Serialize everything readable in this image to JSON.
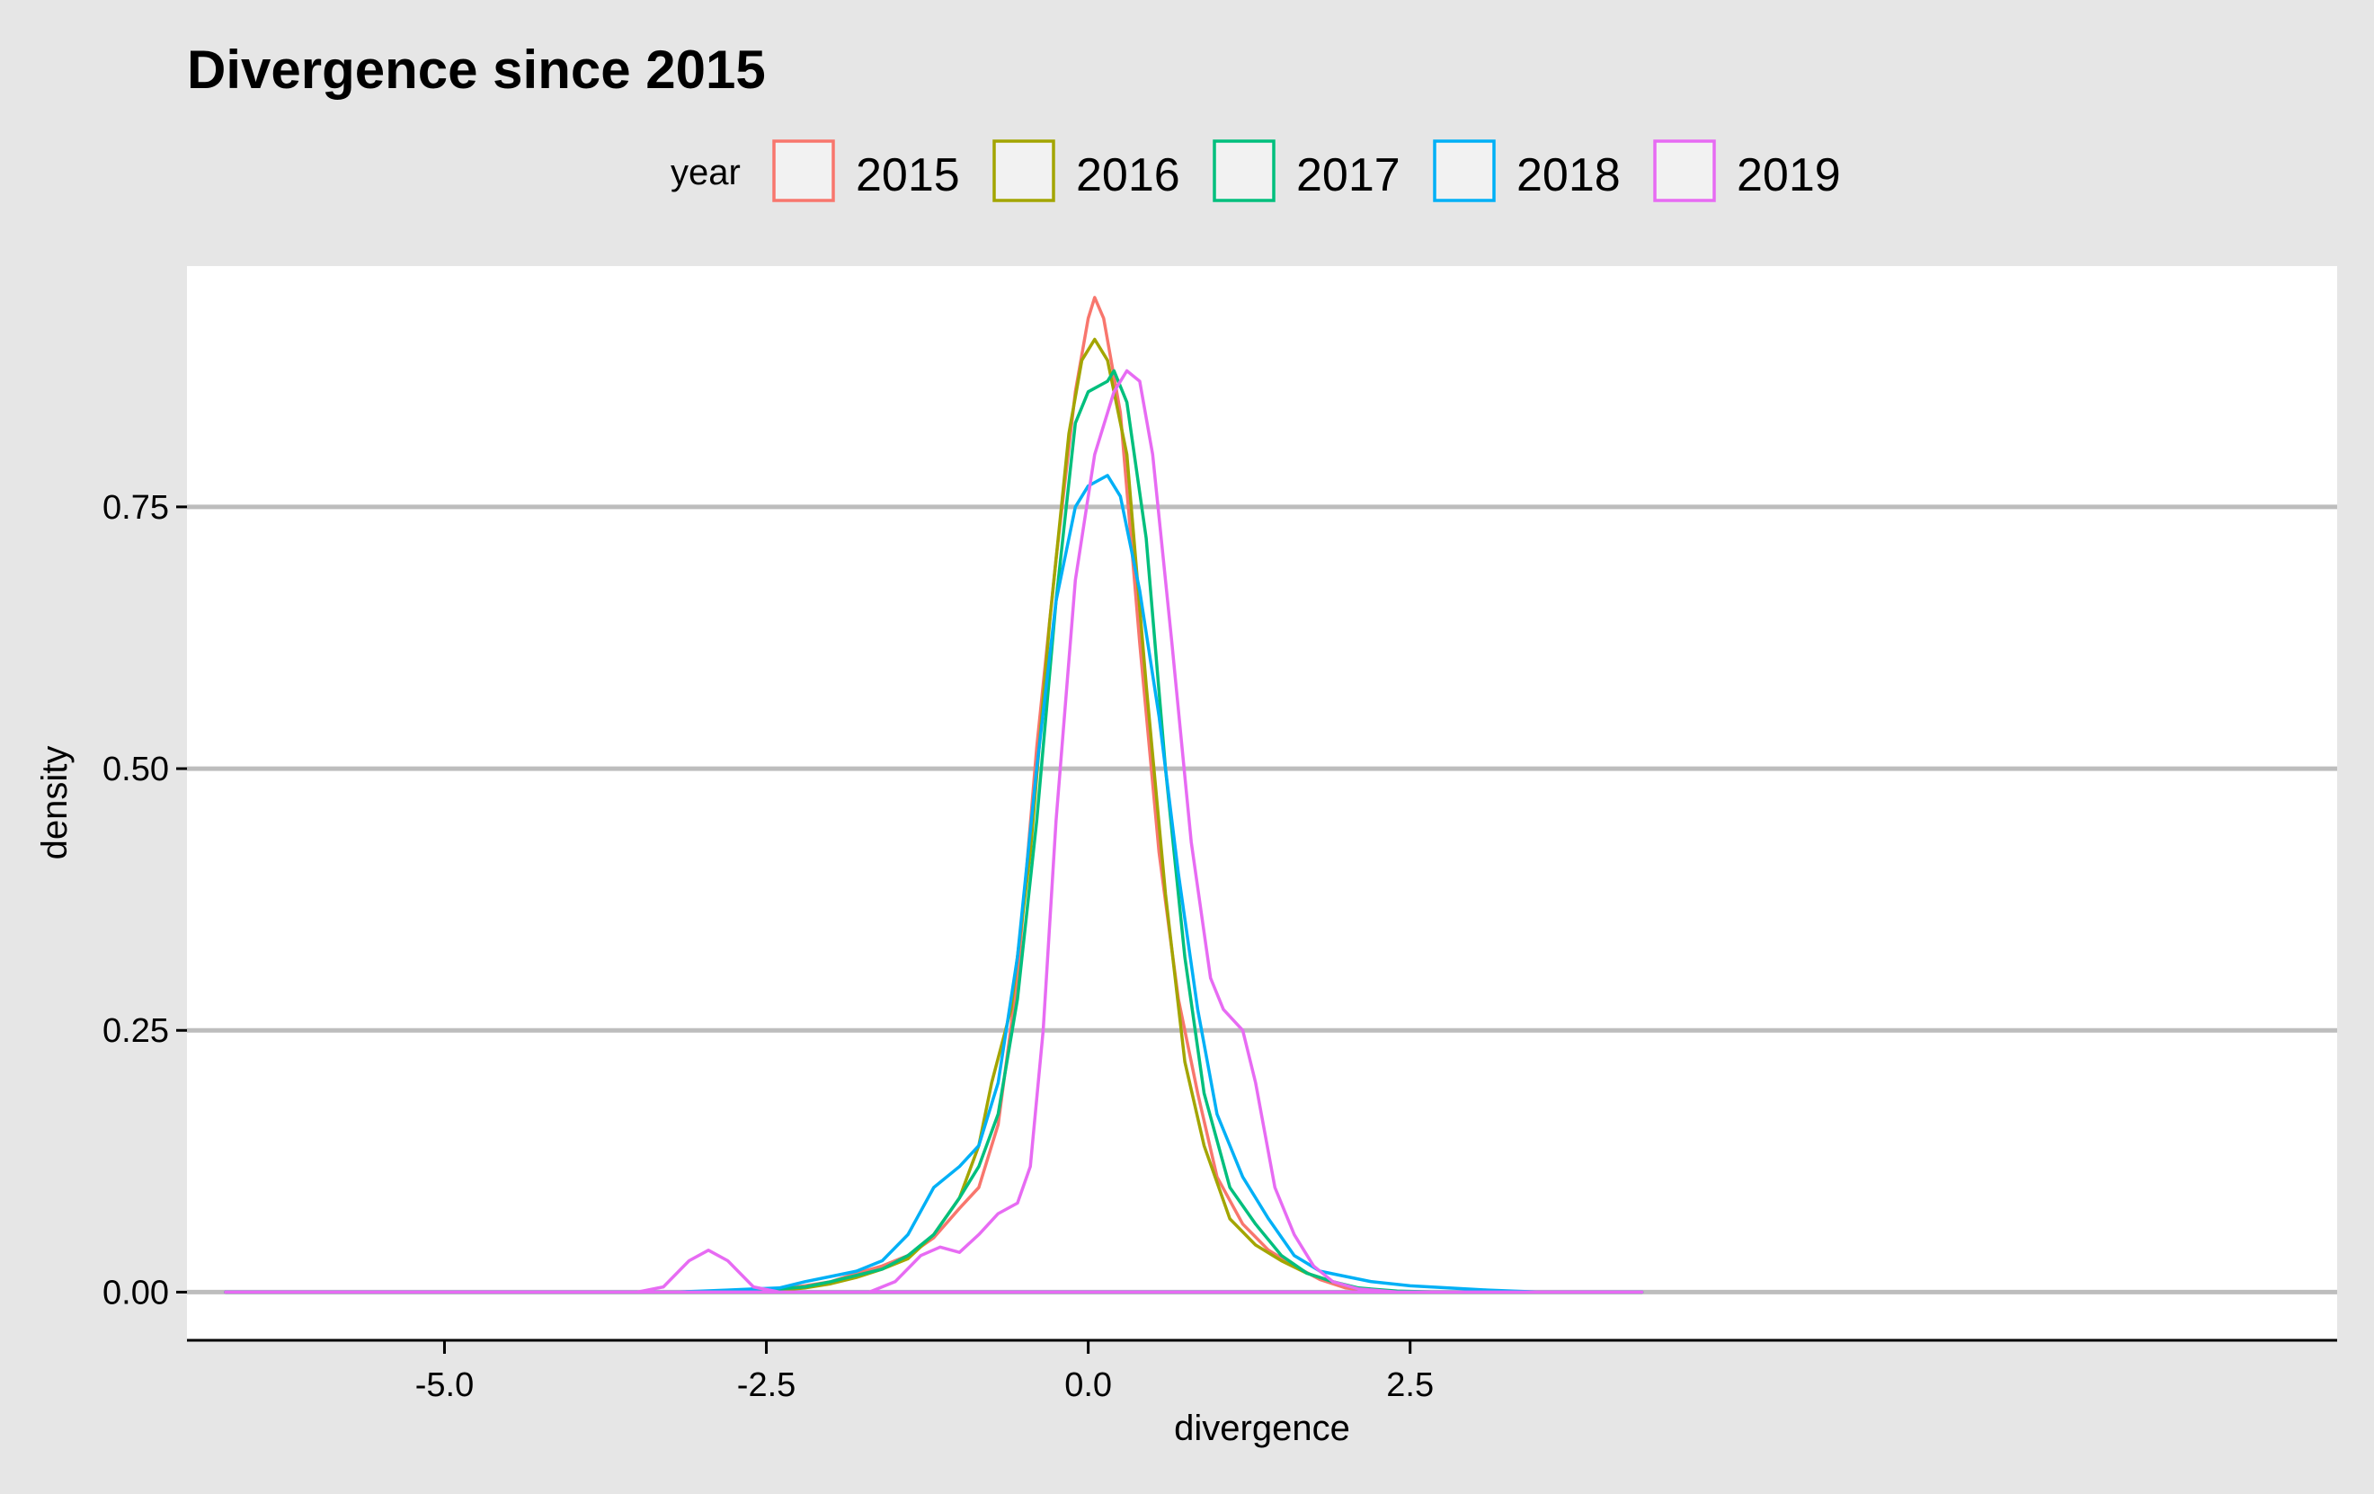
{
  "chart_data": {
    "type": "line",
    "subtype": "density",
    "title": "Divergence since 2015",
    "xlabel": "divergence",
    "ylabel": "density",
    "xlim": [
      -7.0,
      9.7
    ],
    "ylim": [
      -0.046,
      0.98
    ],
    "x_ticks": [
      -5.0,
      -2.5,
      0.0,
      2.5
    ],
    "x_tick_labels": [
      "-5.0",
      "-2.5",
      "0.0",
      "2.5"
    ],
    "y_ticks": [
      0.0,
      0.25,
      0.5,
      0.75
    ],
    "y_tick_labels": [
      "0.00",
      "0.25",
      "0.50",
      "0.75"
    ],
    "grid": "horizontal major",
    "legend": {
      "title": "year",
      "placement": "top"
    },
    "series": [
      {
        "name": "2015",
        "color": "#F8766D",
        "points": [
          [
            -6.7,
            0
          ],
          [
            -3.2,
            0
          ],
          [
            -2.8,
            0.001
          ],
          [
            -2.4,
            0.003
          ],
          [
            -2.2,
            0.006
          ],
          [
            -2.0,
            0.01
          ],
          [
            -1.8,
            0.018
          ],
          [
            -1.6,
            0.025
          ],
          [
            -1.4,
            0.035
          ],
          [
            -1.2,
            0.052
          ],
          [
            -1.0,
            0.08
          ],
          [
            -0.85,
            0.1
          ],
          [
            -0.7,
            0.16
          ],
          [
            -0.55,
            0.3
          ],
          [
            -0.4,
            0.52
          ],
          [
            -0.25,
            0.7
          ],
          [
            -0.1,
            0.86
          ],
          [
            0.0,
            0.93
          ],
          [
            0.05,
            0.95
          ],
          [
            0.12,
            0.93
          ],
          [
            0.25,
            0.84
          ],
          [
            0.4,
            0.62
          ],
          [
            0.55,
            0.42
          ],
          [
            0.7,
            0.28
          ],
          [
            0.85,
            0.19
          ],
          [
            1.0,
            0.11
          ],
          [
            1.2,
            0.065
          ],
          [
            1.4,
            0.04
          ],
          [
            1.6,
            0.025
          ],
          [
            1.8,
            0.012
          ],
          [
            2.0,
            0.004
          ],
          [
            2.2,
            0.001
          ],
          [
            2.5,
            0
          ],
          [
            3.5,
            0
          ],
          [
            4.3,
            0
          ]
        ]
      },
      {
        "name": "2016",
        "color": "#A3A500",
        "points": [
          [
            -6.7,
            0
          ],
          [
            -3.2,
            0
          ],
          [
            -2.8,
            0.001
          ],
          [
            -2.4,
            0.002
          ],
          [
            -2.2,
            0.004
          ],
          [
            -2.0,
            0.008
          ],
          [
            -1.8,
            0.014
          ],
          [
            -1.6,
            0.022
          ],
          [
            -1.4,
            0.032
          ],
          [
            -1.2,
            0.055
          ],
          [
            -1.0,
            0.09
          ],
          [
            -0.85,
            0.14
          ],
          [
            -0.75,
            0.2
          ],
          [
            -0.6,
            0.27
          ],
          [
            -0.45,
            0.42
          ],
          [
            -0.3,
            0.64
          ],
          [
            -0.15,
            0.82
          ],
          [
            -0.05,
            0.89
          ],
          [
            0.05,
            0.91
          ],
          [
            0.15,
            0.89
          ],
          [
            0.3,
            0.8
          ],
          [
            0.45,
            0.58
          ],
          [
            0.6,
            0.38
          ],
          [
            0.75,
            0.22
          ],
          [
            0.9,
            0.14
          ],
          [
            1.1,
            0.07
          ],
          [
            1.3,
            0.045
          ],
          [
            1.5,
            0.03
          ],
          [
            1.7,
            0.018
          ],
          [
            1.9,
            0.01
          ],
          [
            2.1,
            0.003
          ],
          [
            2.4,
            0
          ],
          [
            3.5,
            0
          ],
          [
            4.3,
            0
          ]
        ]
      },
      {
        "name": "2017",
        "color": "#00BF7D",
        "points": [
          [
            -6.7,
            0
          ],
          [
            -3.2,
            0
          ],
          [
            -2.8,
            0.001
          ],
          [
            -2.4,
            0.003
          ],
          [
            -2.2,
            0.005
          ],
          [
            -2.0,
            0.01
          ],
          [
            -1.8,
            0.016
          ],
          [
            -1.6,
            0.022
          ],
          [
            -1.4,
            0.035
          ],
          [
            -1.2,
            0.055
          ],
          [
            -1.0,
            0.09
          ],
          [
            -0.85,
            0.12
          ],
          [
            -0.7,
            0.17
          ],
          [
            -0.55,
            0.28
          ],
          [
            -0.4,
            0.45
          ],
          [
            -0.25,
            0.66
          ],
          [
            -0.1,
            0.83
          ],
          [
            0.0,
            0.86
          ],
          [
            0.15,
            0.87
          ],
          [
            0.2,
            0.88
          ],
          [
            0.3,
            0.85
          ],
          [
            0.45,
            0.72
          ],
          [
            0.6,
            0.5
          ],
          [
            0.75,
            0.32
          ],
          [
            0.9,
            0.19
          ],
          [
            1.1,
            0.1
          ],
          [
            1.3,
            0.065
          ],
          [
            1.5,
            0.035
          ],
          [
            1.7,
            0.018
          ],
          [
            1.9,
            0.01
          ],
          [
            2.1,
            0.004
          ],
          [
            2.4,
            0.001
          ],
          [
            2.7,
            0
          ],
          [
            3.5,
            0
          ],
          [
            4.3,
            0
          ]
        ]
      },
      {
        "name": "2018",
        "color": "#00B0F6",
        "points": [
          [
            -6.7,
            0
          ],
          [
            -3.2,
            0
          ],
          [
            -2.8,
            0.002
          ],
          [
            -2.6,
            0.003
          ],
          [
            -2.4,
            0.004
          ],
          [
            -2.2,
            0.01
          ],
          [
            -2.0,
            0.015
          ],
          [
            -1.8,
            0.02
          ],
          [
            -1.6,
            0.03
          ],
          [
            -1.4,
            0.055
          ],
          [
            -1.2,
            0.1
          ],
          [
            -1.0,
            0.12
          ],
          [
            -0.85,
            0.14
          ],
          [
            -0.7,
            0.2
          ],
          [
            -0.55,
            0.32
          ],
          [
            -0.4,
            0.5
          ],
          [
            -0.25,
            0.66
          ],
          [
            -0.1,
            0.75
          ],
          [
            0.0,
            0.77
          ],
          [
            0.15,
            0.78
          ],
          [
            0.25,
            0.76
          ],
          [
            0.4,
            0.67
          ],
          [
            0.55,
            0.55
          ],
          [
            0.7,
            0.4
          ],
          [
            0.85,
            0.27
          ],
          [
            1.0,
            0.17
          ],
          [
            1.2,
            0.11
          ],
          [
            1.4,
            0.07
          ],
          [
            1.6,
            0.035
          ],
          [
            1.8,
            0.02
          ],
          [
            2.0,
            0.015
          ],
          [
            2.2,
            0.01
          ],
          [
            2.5,
            0.006
          ],
          [
            2.8,
            0.004
          ],
          [
            3.1,
            0.002
          ],
          [
            3.5,
            0
          ],
          [
            4.3,
            0
          ]
        ]
      },
      {
        "name": "2019",
        "color": "#E76BF3",
        "points": [
          [
            -6.7,
            0
          ],
          [
            -3.5,
            0
          ],
          [
            -3.3,
            0.005
          ],
          [
            -3.1,
            0.03
          ],
          [
            -2.95,
            0.04
          ],
          [
            -2.8,
            0.03
          ],
          [
            -2.6,
            0.005
          ],
          [
            -2.4,
            0
          ],
          [
            -1.7,
            0
          ],
          [
            -1.5,
            0.01
          ],
          [
            -1.3,
            0.035
          ],
          [
            -1.15,
            0.043
          ],
          [
            -1.0,
            0.038
          ],
          [
            -0.85,
            0.055
          ],
          [
            -0.7,
            0.075
          ],
          [
            -0.55,
            0.085
          ],
          [
            -0.45,
            0.12
          ],
          [
            -0.35,
            0.25
          ],
          [
            -0.25,
            0.45
          ],
          [
            -0.1,
            0.68
          ],
          [
            0.05,
            0.8
          ],
          [
            0.2,
            0.86
          ],
          [
            0.3,
            0.88
          ],
          [
            0.4,
            0.87
          ],
          [
            0.5,
            0.8
          ],
          [
            0.65,
            0.62
          ],
          [
            0.8,
            0.43
          ],
          [
            0.95,
            0.3
          ],
          [
            1.05,
            0.27
          ],
          [
            1.2,
            0.25
          ],
          [
            1.3,
            0.2
          ],
          [
            1.45,
            0.1
          ],
          [
            1.6,
            0.055
          ],
          [
            1.75,
            0.025
          ],
          [
            1.9,
            0.01
          ],
          [
            2.1,
            0.003
          ],
          [
            2.4,
            0
          ],
          [
            3.5,
            0
          ],
          [
            4.3,
            0
          ]
        ]
      }
    ]
  }
}
